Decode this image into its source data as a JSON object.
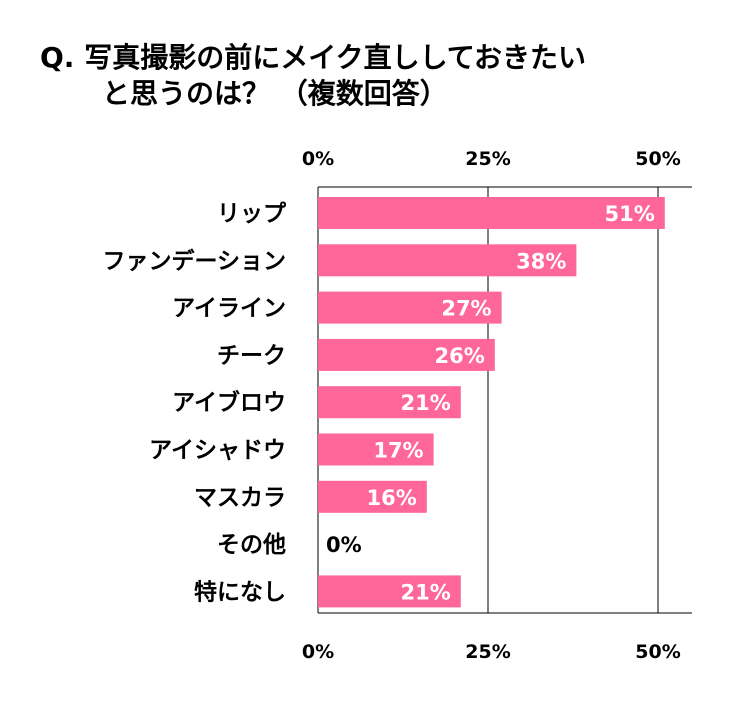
{
  "title": {
    "line1": "Q. 写真撮影の前にメイク直ししておきたい",
    "line2": "と思うのは？ （複数回答）"
  },
  "chart_data": {
    "type": "bar",
    "orientation": "horizontal",
    "categories": [
      "リップ",
      "ファンデーション",
      "アイライン",
      "チーク",
      "アイブロウ",
      "アイシャドウ",
      "マスカラ",
      "その他",
      "特になし"
    ],
    "values": [
      51,
      38,
      27,
      26,
      21,
      17,
      16,
      0,
      21
    ],
    "value_labels": [
      "51%",
      "38%",
      "27%",
      "26%",
      "21%",
      "17%",
      "16%",
      "0%",
      "21%"
    ],
    "xlim": [
      0,
      55
    ],
    "ticks": [
      0,
      25,
      50
    ],
    "tick_labels": [
      "0%",
      "25%",
      "50%"
    ],
    "bar_color": "#ff6699",
    "label_color": "#ffffff",
    "grid": true
  }
}
